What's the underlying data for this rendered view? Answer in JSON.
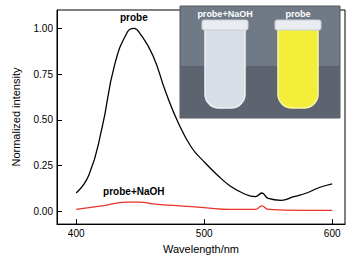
{
  "chart_data": {
    "type": "line",
    "x_label": "Wavelength/nm",
    "y_label": "Normalized intensity",
    "xlim": [
      385,
      610
    ],
    "xticks": [
      400,
      500,
      600
    ],
    "ylim": [
      -0.07,
      1.1
    ],
    "yticks": [
      {
        "value": 0,
        "label": "0.00"
      },
      {
        "value": 0.25,
        "label": "0.25"
      },
      {
        "value": 0.5,
        "label": "0.50"
      },
      {
        "value": 0.75,
        "label": "0.75"
      },
      {
        "value": 1,
        "label": "1.00"
      }
    ],
    "grid": false,
    "series": [
      {
        "name": "probe",
        "color": "#000000",
        "x": [
          400,
          410,
          420,
          430,
          440,
          445,
          450,
          460,
          470,
          480,
          490,
          500,
          510,
          520,
          530,
          540,
          545,
          550,
          560,
          570,
          580,
          590,
          600
        ],
        "values": [
          0.1,
          0.2,
          0.45,
          0.8,
          0.98,
          1.0,
          0.97,
          0.85,
          0.65,
          0.48,
          0.35,
          0.27,
          0.2,
          0.14,
          0.1,
          0.08,
          0.1,
          0.07,
          0.06,
          0.08,
          0.1,
          0.13,
          0.15
        ]
      },
      {
        "name": "probe+NaOH",
        "color": "#e8342a",
        "x": [
          400,
          420,
          440,
          450,
          460,
          480,
          500,
          520,
          540,
          545,
          550,
          575,
          600
        ],
        "values": [
          0.01,
          0.03,
          0.05,
          0.05,
          0.04,
          0.03,
          0.02,
          0.01,
          0.01,
          0.03,
          0.01,
          0.005,
          0.005
        ]
      }
    ],
    "annotations": [
      {
        "text": "probe",
        "x": 445,
        "y": 1.06
      },
      {
        "text": "probe+NaOH",
        "x": 445,
        "y": 0.11
      }
    ],
    "inset_labels": [
      "probe+NaOH",
      "probe"
    ]
  }
}
